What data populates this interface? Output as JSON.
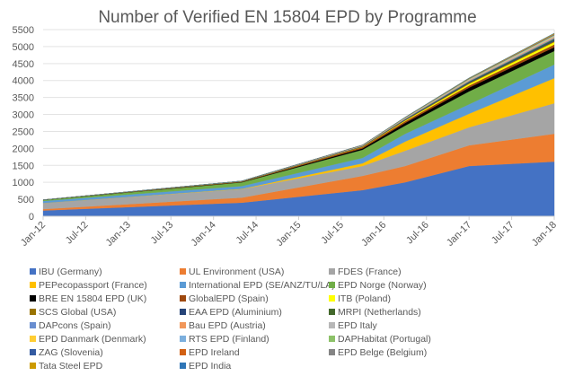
{
  "chart_data": {
    "type": "area",
    "stacked": true,
    "title": "Number of Verified EN 15804 EPD by Programme",
    "xlabel": "",
    "ylabel": "",
    "ylim": [
      0,
      5500
    ],
    "yticks": [
      0,
      500,
      1000,
      1500,
      2000,
      2500,
      3000,
      3500,
      4000,
      4500,
      5000,
      5500
    ],
    "xticks": [
      "Jan-12",
      "Jul-12",
      "Jan-13",
      "Jul-13",
      "Jan-14",
      "Jul-14",
      "Jan-15",
      "Jul-15",
      "Jan-16",
      "Jul-16",
      "Jan-17",
      "Jul-17",
      "Jan-18"
    ],
    "xlim": [
      "2012-01",
      "2018-01"
    ],
    "grid": true,
    "legend_position": "bottom",
    "x": [
      "2012-01",
      "2014-05",
      "2015-10",
      "2016-04",
      "2017-01",
      "2018-01"
    ],
    "series": [
      {
        "name": "IBU (Germany)",
        "color": "#4472C4",
        "values": [
          170,
          400,
          770,
          1000,
          1480,
          1610
        ]
      },
      {
        "name": "UL Environment (USA)",
        "color": "#ED7D31",
        "values": [
          40,
          150,
          420,
          480,
          610,
          820
        ]
      },
      {
        "name": "FDES (France)",
        "color": "#A5A5A5",
        "values": [
          180,
          250,
          290,
          450,
          530,
          900
        ]
      },
      {
        "name": "PEPecopassport (France)",
        "color": "#FFC000",
        "values": [
          0,
          10,
          80,
          270,
          400,
          740
        ]
      },
      {
        "name": "International EPD (SE/ANZ/TU/LA)",
        "color": "#5B9BD5",
        "values": [
          60,
          80,
          160,
          230,
          280,
          400
        ]
      },
      {
        "name": "EPD Norge (Norway)",
        "color": "#70AD47",
        "values": [
          30,
          110,
          240,
          240,
          380,
          400
        ]
      },
      {
        "name": "BRE EN 15804 EPD (UK)",
        "color": "#000000",
        "values": [
          0,
          10,
          40,
          80,
          110,
          110
        ]
      },
      {
        "name": "GlobalEPD (Spain)",
        "color": "#9E480E",
        "values": [
          5,
          15,
          40,
          50,
          60,
          80
        ]
      },
      {
        "name": "ITB (Poland)",
        "color": "#FFFF00",
        "values": [
          0,
          0,
          5,
          20,
          50,
          70
        ]
      },
      {
        "name": "SCS Global (USA)",
        "color": "#997300",
        "values": [
          0,
          5,
          10,
          15,
          25,
          30
        ]
      },
      {
        "name": "EAA EPD (Aluminium)",
        "color": "#264478",
        "values": [
          0,
          0,
          5,
          15,
          25,
          40
        ]
      },
      {
        "name": "MRPI (Netherlands)",
        "color": "#43682B",
        "values": [
          0,
          0,
          5,
          10,
          20,
          30
        ]
      },
      {
        "name": "DAPcons (Spain)",
        "color": "#698ED0",
        "values": [
          0,
          5,
          10,
          15,
          20,
          25
        ]
      },
      {
        "name": "Bau EPD (Austria)",
        "color": "#F1975A",
        "values": [
          0,
          5,
          10,
          10,
          15,
          20
        ]
      },
      {
        "name": "EPD Italy",
        "color": "#B7B7B7",
        "values": [
          0,
          0,
          5,
          10,
          15,
          25
        ]
      },
      {
        "name": "EPD Danmark (Denmark)",
        "color": "#FFCD33",
        "values": [
          0,
          0,
          5,
          5,
          10,
          15
        ]
      },
      {
        "name": "RTS EPD (Finland)",
        "color": "#7CAFDD",
        "values": [
          0,
          0,
          0,
          5,
          10,
          15
        ]
      },
      {
        "name": "DAPHabitat (Portugal)",
        "color": "#8CC168",
        "values": [
          0,
          0,
          5,
          5,
          10,
          10
        ]
      },
      {
        "name": "ZAG (Slovenia)",
        "color": "#335AA1",
        "values": [
          0,
          0,
          0,
          5,
          5,
          10
        ]
      },
      {
        "name": "EPD Ireland",
        "color": "#D26012",
        "values": [
          0,
          0,
          0,
          0,
          5,
          10
        ]
      },
      {
        "name": "EPD Belge (Belgium)",
        "color": "#848484",
        "values": [
          0,
          0,
          0,
          0,
          5,
          10
        ]
      },
      {
        "name": "Tata Steel EPD",
        "color": "#CC9A00",
        "values": [
          0,
          0,
          0,
          5,
          10,
          20
        ]
      },
      {
        "name": "EPD India",
        "color": "#2E75B6",
        "values": [
          0,
          0,
          0,
          0,
          0,
          5
        ]
      }
    ]
  }
}
